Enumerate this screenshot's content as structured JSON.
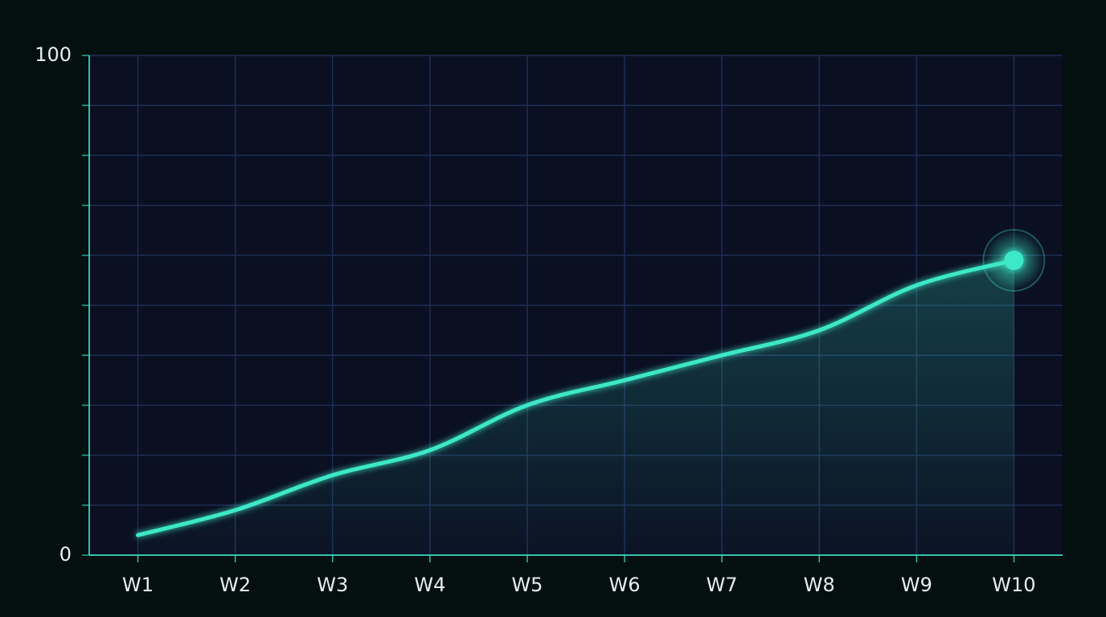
{
  "chart_data": {
    "type": "line",
    "categories": [
      "W1",
      "W2",
      "W3",
      "W4",
      "W5",
      "W6",
      "W7",
      "W8",
      "W9",
      "W10"
    ],
    "series": [
      {
        "color": "#3de8c8",
        "values": [
          4,
          9,
          16,
          21,
          30,
          35,
          40,
          45,
          54,
          59
        ]
      }
    ],
    "ylim": [
      0,
      100
    ],
    "yticks": [
      0,
      100
    ],
    "ygrid": [
      0,
      10,
      20,
      30,
      40,
      50,
      60,
      70,
      80,
      90,
      100
    ],
    "grid": true
  }
}
